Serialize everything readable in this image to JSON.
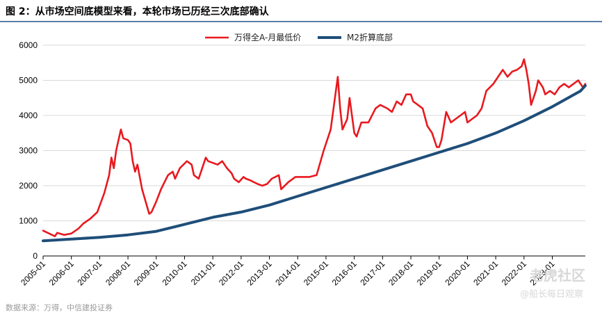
{
  "figure": {
    "title": "图 2：从市场空间底模型来看，本轮市场已历经三次底部确认",
    "source": "数据来源：万得，中信建投证券"
  },
  "watermark": {
    "main": "老虎社区",
    "sub": "@船长每日观察"
  },
  "colors": {
    "series1": "#e8191f",
    "series2": "#1f4e79",
    "title_rule": "#5a7fa6"
  },
  "chart_data": {
    "type": "line",
    "title": "",
    "xlabel": "",
    "ylabel": "",
    "ylim": [
      0,
      6000
    ],
    "yticks": [
      0,
      1000,
      2000,
      3000,
      4000,
      5000,
      6000
    ],
    "xticks": [
      "2005-01",
      "2006-01",
      "2007-01",
      "2008-01",
      "2009-01",
      "2010-01",
      "2011-01",
      "2012-01",
      "2013-01",
      "2014-01",
      "2015-01",
      "2016-01",
      "2017-01",
      "2018-01",
      "2019-01",
      "2020-01",
      "2021-01",
      "2022-01",
      "2023-01"
    ],
    "x_range": [
      "2005-01",
      "2024-03"
    ],
    "grid": "horizontal",
    "legend_position": "top-center",
    "series": [
      {
        "name": "万得全A-月最低价",
        "color": "#e8191f",
        "x": [
          "2005-01",
          "2005-06",
          "2005-07",
          "2005-10",
          "2006-01",
          "2006-04",
          "2006-06",
          "2006-09",
          "2006-12",
          "2007-03",
          "2007-05",
          "2007-06",
          "2007-07",
          "2007-08",
          "2007-10",
          "2007-11",
          "2008-01",
          "2008-02",
          "2008-03",
          "2008-04",
          "2008-05",
          "2008-07",
          "2008-10",
          "2008-11",
          "2009-01",
          "2009-03",
          "2009-06",
          "2009-08",
          "2009-09",
          "2009-11",
          "2010-02",
          "2010-04",
          "2010-05",
          "2010-07",
          "2010-10",
          "2010-11",
          "2011-01",
          "2011-03",
          "2011-05",
          "2011-07",
          "2011-09",
          "2011-10",
          "2011-12",
          "2012-02",
          "2012-03",
          "2012-05",
          "2012-08",
          "2012-10",
          "2012-12",
          "2013-02",
          "2013-05",
          "2013-06",
          "2013-09",
          "2013-12",
          "2014-03",
          "2014-06",
          "2014-09",
          "2014-12",
          "2015-03",
          "2015-05",
          "2015-06",
          "2015-07",
          "2015-08",
          "2015-10",
          "2015-11",
          "2016-01",
          "2016-02",
          "2016-04",
          "2016-07",
          "2016-10",
          "2016-12",
          "2017-03",
          "2017-05",
          "2017-07",
          "2017-09",
          "2017-11",
          "2018-01",
          "2018-02",
          "2018-04",
          "2018-06",
          "2018-08",
          "2018-10",
          "2018-12",
          "2019-01",
          "2019-02",
          "2019-04",
          "2019-06",
          "2019-08",
          "2019-10",
          "2019-12",
          "2020-01",
          "2020-03",
          "2020-05",
          "2020-07",
          "2020-09",
          "2020-12",
          "2021-02",
          "2021-04",
          "2021-06",
          "2021-08",
          "2021-10",
          "2021-12",
          "2022-01",
          "2022-02",
          "2022-03",
          "2022-04",
          "2022-06",
          "2022-07",
          "2022-09",
          "2022-10",
          "2022-12",
          "2023-02",
          "2023-04",
          "2023-06",
          "2023-08",
          "2023-10",
          "2023-12",
          "2024-01",
          "2024-02",
          "2024-03"
        ],
        "values": [
          720,
          560,
          660,
          600,
          640,
          780,
          920,
          1060,
          1250,
          1800,
          2300,
          2800,
          2500,
          3000,
          3600,
          3350,
          3300,
          3200,
          2700,
          2400,
          2600,
          1900,
          1200,
          1250,
          1550,
          1900,
          2300,
          2400,
          2200,
          2500,
          2700,
          2600,
          2300,
          2200,
          2800,
          2700,
          2650,
          2600,
          2700,
          2500,
          2350,
          2200,
          2100,
          2250,
          2200,
          2150,
          2050,
          2000,
          2050,
          2200,
          2300,
          1900,
          2100,
          2250,
          2250,
          2250,
          2300,
          3000,
          3600,
          4600,
          5100,
          4200,
          3600,
          3900,
          4500,
          3500,
          3400,
          3800,
          3800,
          4200,
          4300,
          4200,
          4100,
          4400,
          4300,
          4600,
          4600,
          4400,
          4300,
          4200,
          3700,
          3500,
          3100,
          3100,
          3300,
          4100,
          3800,
          3900,
          4000,
          4100,
          3800,
          3900,
          4000,
          4200,
          4700,
          4900,
          5100,
          5300,
          5100,
          5250,
          5300,
          5400,
          5600,
          5300,
          4900,
          4300,
          4700,
          5000,
          4800,
          4600,
          4700,
          4600,
          4800,
          4900,
          4800,
          4900,
          5000,
          4900,
          4800,
          4900
        ]
      },
      {
        "name": "M2折算底部",
        "color": "#1f4e79",
        "x": [
          "2005-01",
          "2006-01",
          "2007-01",
          "2008-01",
          "2009-01",
          "2010-01",
          "2011-01",
          "2012-01",
          "2013-01",
          "2014-01",
          "2015-01",
          "2016-01",
          "2017-01",
          "2018-01",
          "2019-01",
          "2020-01",
          "2021-01",
          "2022-01",
          "2023-01",
          "2024-01",
          "2024-03"
        ],
        "values": [
          430,
          480,
          530,
          600,
          700,
          900,
          1100,
          1250,
          1450,
          1700,
          1950,
          2200,
          2450,
          2700,
          2950,
          3200,
          3500,
          3850,
          4250,
          4700,
          4850
        ]
      }
    ]
  }
}
